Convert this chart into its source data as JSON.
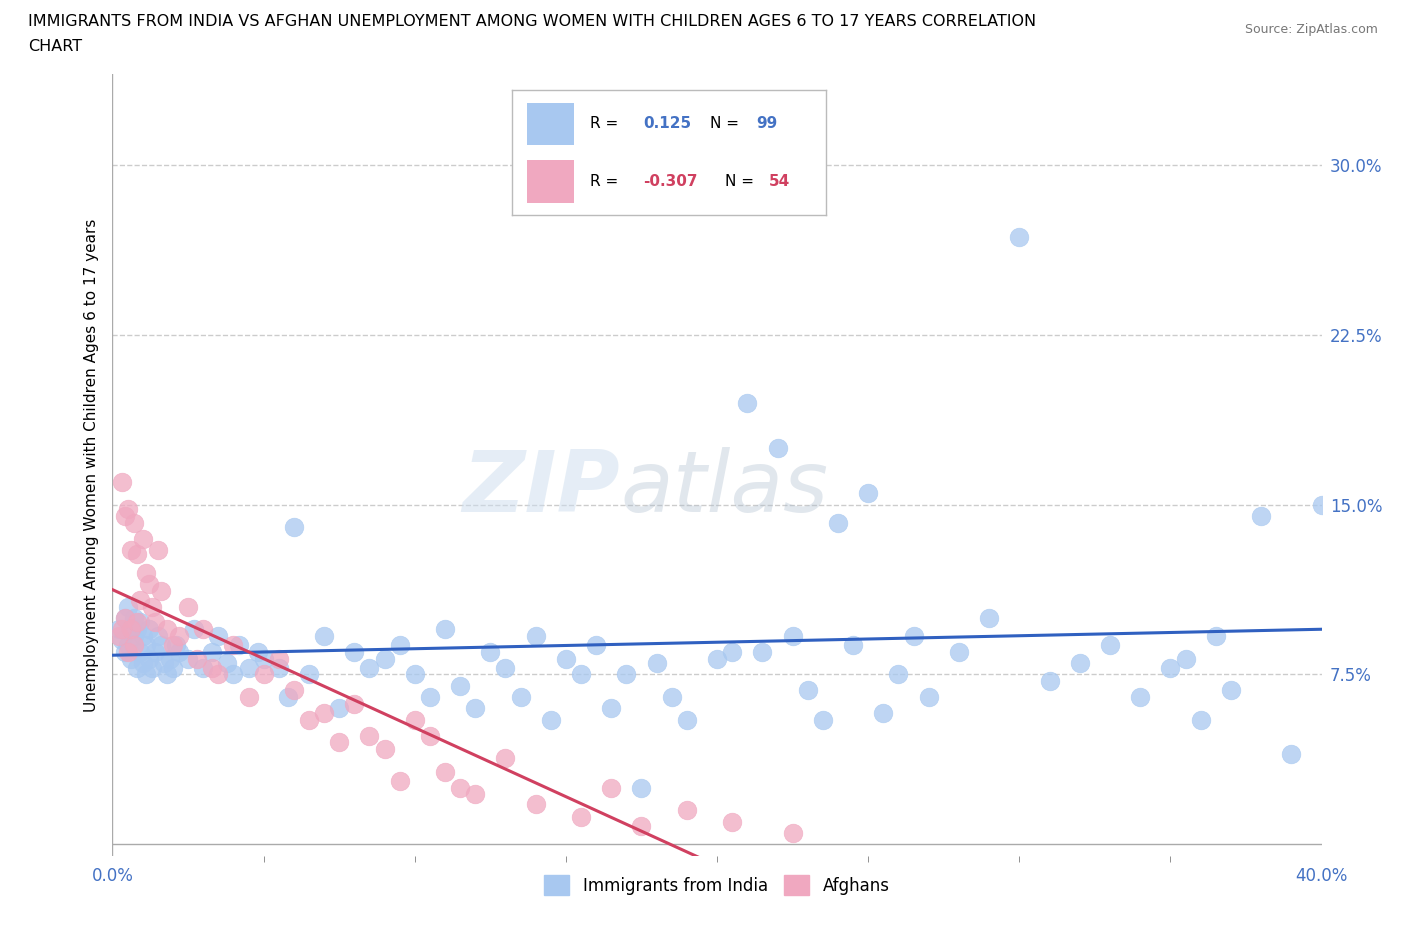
{
  "title_line1": "IMMIGRANTS FROM INDIA VS AFGHAN UNEMPLOYMENT AMONG WOMEN WITH CHILDREN AGES 6 TO 17 YEARS CORRELATION",
  "title_line2": "CHART",
  "source": "Source: ZipAtlas.com",
  "ylabel": "Unemployment Among Women with Children Ages 6 to 17 years",
  "xlim": [
    0.0,
    0.4
  ],
  "ylim": [
    -0.005,
    0.34
  ],
  "xtick_positions": [
    0.0,
    0.4
  ],
  "xticklabels": [
    "0.0%",
    "40.0%"
  ],
  "ytick_positions": [
    0.075,
    0.15,
    0.225,
    0.3
  ],
  "yticklabels": [
    "7.5%",
    "15.0%",
    "22.5%",
    "30.0%"
  ],
  "india_color": "#a8c8f0",
  "afghan_color": "#f0a8c0",
  "india_line_color": "#3060c0",
  "afghan_line_color": "#d04060",
  "watermark_zip": "ZIP",
  "watermark_atlas": "atlas",
  "legend_label_india": "Immigrants from India",
  "legend_label_afghan": "Afghans",
  "india_x": [
    0.002,
    0.003,
    0.004,
    0.004,
    0.005,
    0.005,
    0.006,
    0.006,
    0.007,
    0.007,
    0.008,
    0.008,
    0.009,
    0.009,
    0.01,
    0.01,
    0.011,
    0.011,
    0.012,
    0.012,
    0.013,
    0.014,
    0.015,
    0.016,
    0.017,
    0.018,
    0.019,
    0.02,
    0.021,
    0.022,
    0.025,
    0.027,
    0.03,
    0.033,
    0.035,
    0.038,
    0.04,
    0.042,
    0.045,
    0.048,
    0.05,
    0.055,
    0.058,
    0.06,
    0.065,
    0.07,
    0.075,
    0.08,
    0.085,
    0.09,
    0.095,
    0.1,
    0.105,
    0.11,
    0.115,
    0.12,
    0.125,
    0.13,
    0.135,
    0.14,
    0.145,
    0.15,
    0.155,
    0.16,
    0.165,
    0.17,
    0.175,
    0.18,
    0.185,
    0.19,
    0.2,
    0.205,
    0.21,
    0.215,
    0.22,
    0.225,
    0.23,
    0.235,
    0.24,
    0.245,
    0.25,
    0.255,
    0.26,
    0.265,
    0.27,
    0.28,
    0.29,
    0.3,
    0.31,
    0.32,
    0.33,
    0.34,
    0.35,
    0.355,
    0.36,
    0.365,
    0.37,
    0.38,
    0.39,
    0.4
  ],
  "india_y": [
    0.095,
    0.09,
    0.1,
    0.085,
    0.088,
    0.105,
    0.082,
    0.095,
    0.092,
    0.1,
    0.078,
    0.095,
    0.085,
    0.098,
    0.08,
    0.092,
    0.075,
    0.088,
    0.082,
    0.095,
    0.078,
    0.085,
    0.092,
    0.088,
    0.08,
    0.075,
    0.082,
    0.078,
    0.088,
    0.085,
    0.082,
    0.095,
    0.078,
    0.085,
    0.092,
    0.08,
    0.075,
    0.088,
    0.078,
    0.085,
    0.082,
    0.078,
    0.065,
    0.14,
    0.075,
    0.092,
    0.06,
    0.085,
    0.078,
    0.082,
    0.088,
    0.075,
    0.065,
    0.095,
    0.07,
    0.06,
    0.085,
    0.078,
    0.065,
    0.092,
    0.055,
    0.082,
    0.075,
    0.088,
    0.06,
    0.075,
    0.025,
    0.08,
    0.065,
    0.055,
    0.082,
    0.085,
    0.195,
    0.085,
    0.175,
    0.092,
    0.068,
    0.055,
    0.142,
    0.088,
    0.155,
    0.058,
    0.075,
    0.092,
    0.065,
    0.085,
    0.1,
    0.268,
    0.072,
    0.08,
    0.088,
    0.065,
    0.078,
    0.082,
    0.055,
    0.092,
    0.068,
    0.145,
    0.04,
    0.15
  ],
  "afghan_x": [
    0.002,
    0.003,
    0.003,
    0.004,
    0.004,
    0.005,
    0.005,
    0.006,
    0.006,
    0.007,
    0.007,
    0.008,
    0.008,
    0.009,
    0.01,
    0.011,
    0.012,
    0.013,
    0.014,
    0.015,
    0.016,
    0.018,
    0.02,
    0.022,
    0.025,
    0.028,
    0.03,
    0.033,
    0.035,
    0.04,
    0.045,
    0.05,
    0.055,
    0.06,
    0.065,
    0.07,
    0.075,
    0.08,
    0.085,
    0.09,
    0.095,
    0.1,
    0.105,
    0.11,
    0.115,
    0.12,
    0.13,
    0.14,
    0.155,
    0.165,
    0.175,
    0.19,
    0.205,
    0.225
  ],
  "afghan_y": [
    0.092,
    0.16,
    0.095,
    0.145,
    0.1,
    0.148,
    0.085,
    0.13,
    0.095,
    0.142,
    0.088,
    0.128,
    0.098,
    0.108,
    0.135,
    0.12,
    0.115,
    0.105,
    0.098,
    0.13,
    0.112,
    0.095,
    0.088,
    0.092,
    0.105,
    0.082,
    0.095,
    0.078,
    0.075,
    0.088,
    0.065,
    0.075,
    0.082,
    0.068,
    0.055,
    0.058,
    0.045,
    0.062,
    0.048,
    0.042,
    0.028,
    0.055,
    0.048,
    0.032,
    0.025,
    0.022,
    0.038,
    0.018,
    0.012,
    0.025,
    0.008,
    0.015,
    0.01,
    0.005
  ]
}
